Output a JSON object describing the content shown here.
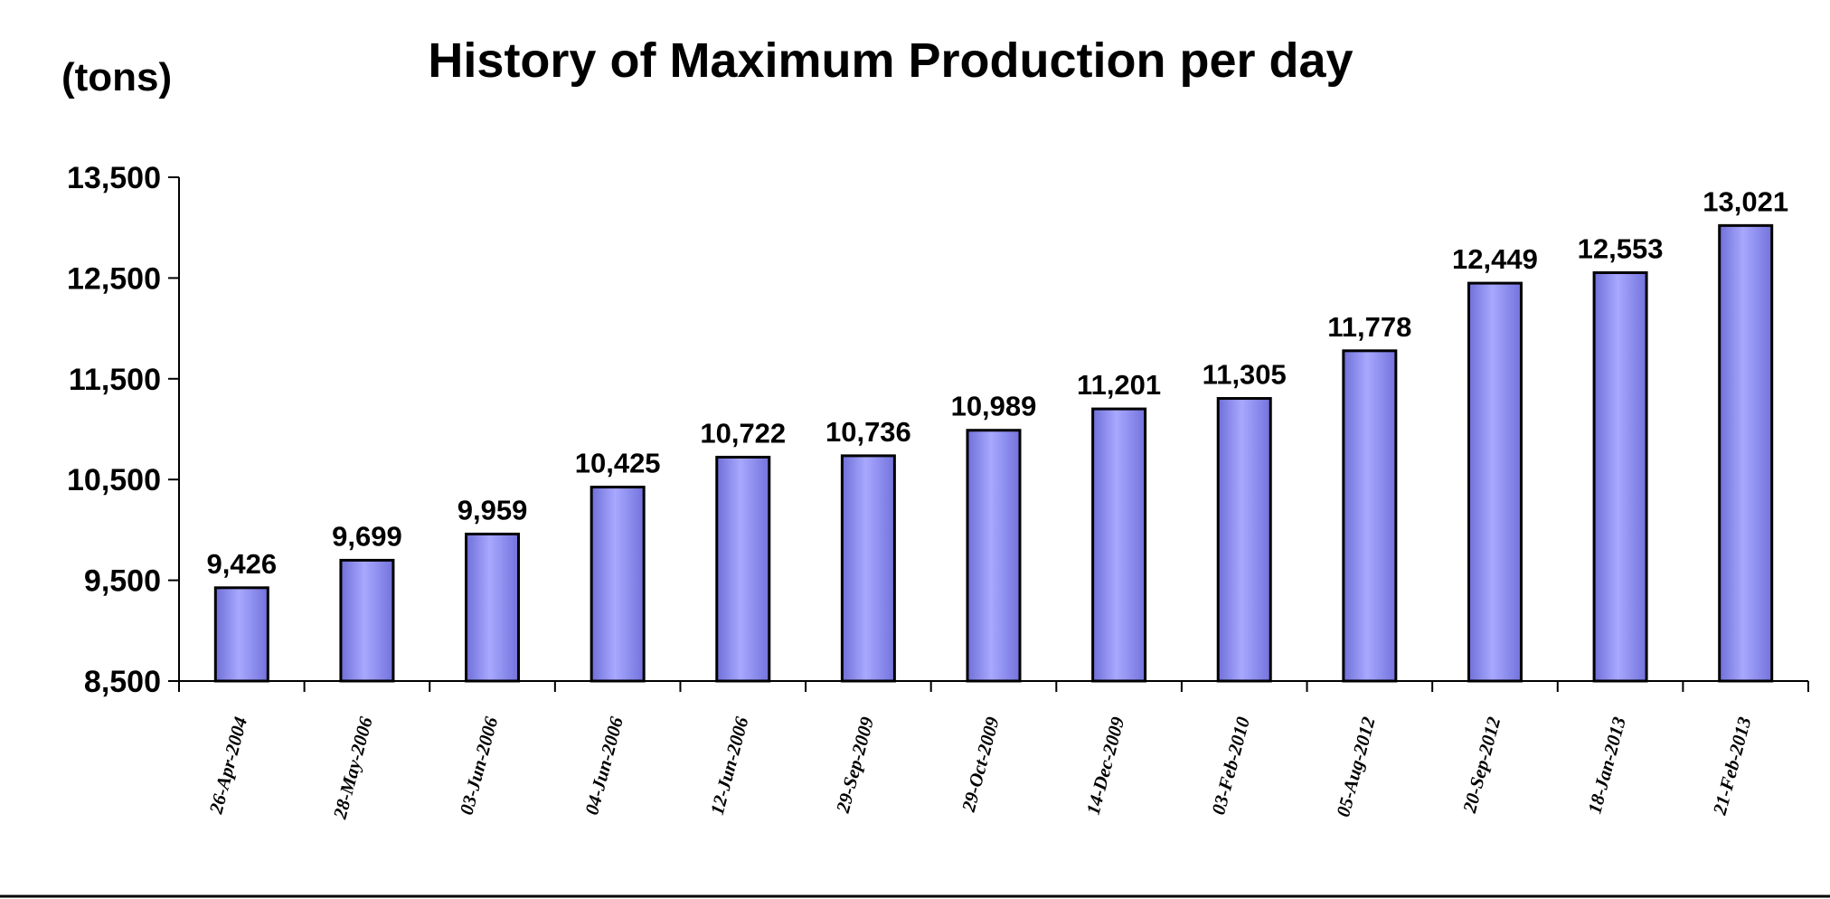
{
  "chart_data": {
    "type": "bar",
    "title": "History of Maximum Production per day",
    "unit_label": "(tons)",
    "categories": [
      "26-Apr-2004",
      "28-May-2006",
      "03-Jun-2006",
      "04-Jun-2006",
      "12-Jun-2006",
      "29-Sep-2009",
      "29-Oct-2009",
      "14-Dec-2009",
      "03-Feb-2010",
      "05-Aug-2012",
      "20-Sep-2012",
      "18-Jan-2013",
      "21-Feb-2013"
    ],
    "values": [
      9426,
      9699,
      9959,
      10425,
      10722,
      10736,
      10989,
      11201,
      11305,
      11778,
      12449,
      12553,
      13021
    ],
    "value_labels": [
      "9,426",
      "9,699",
      "9,959",
      "10,425",
      "10,722",
      "10,736",
      "10,989",
      "11,201",
      "11,305",
      "11,778",
      "12,449",
      "12,553",
      "13,021"
    ],
    "ylim": [
      8500,
      13500
    ],
    "yticks": [
      8500,
      9500,
      10500,
      11500,
      12500,
      13500
    ],
    "ytick_labels": [
      "8,500",
      "9,500",
      "10,500",
      "11,500",
      "12,500",
      "13,500"
    ],
    "grid": false,
    "legend": "none",
    "bar_color": "#9999ff"
  }
}
